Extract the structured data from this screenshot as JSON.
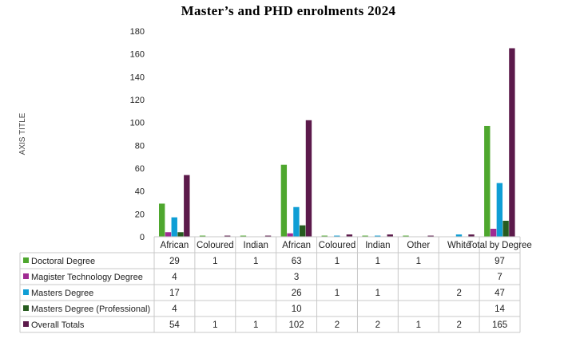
{
  "chart_data": {
    "type": "bar",
    "title": "Master’s and PHD enrolments 2024",
    "ylabel": "AXIS TITLE",
    "xlabel": "",
    "ylim": [
      0,
      180
    ],
    "yticks": [
      "0",
      "20",
      "40",
      "60",
      "80",
      "100",
      "120",
      "140",
      "160",
      "180"
    ],
    "categories": [
      "African",
      "Coloured",
      "Indian",
      "African",
      "Coloured",
      "Indian",
      "Other",
      "White",
      "Total by Degree"
    ],
    "grid": false,
    "legend": "data-table",
    "series": [
      {
        "name": "Doctoral Degree",
        "color": "#4EA72E",
        "values": [
          29,
          1,
          1,
          63,
          1,
          1,
          1,
          null,
          97
        ],
        "labels": [
          "29",
          "1",
          "1",
          "63",
          "1",
          "1",
          "1",
          "",
          "97"
        ]
      },
      {
        "name": "Magister Technology Degree",
        "color": "#A02B93",
        "values": [
          4,
          null,
          null,
          3,
          null,
          null,
          null,
          null,
          7
        ],
        "labels": [
          "4",
          "",
          "",
          "3",
          "",
          "",
          "",
          "",
          "7"
        ]
      },
      {
        "name": "Masters Degree",
        "color": "#0F9ED5",
        "values": [
          17,
          null,
          null,
          26,
          1,
          1,
          null,
          2,
          47
        ],
        "labels": [
          "17",
          "",
          "",
          "26",
          "1",
          "1",
          "",
          "2",
          "47"
        ]
      },
      {
        "name": "Masters Degree (Professional)",
        "color": "#265C1F",
        "values": [
          4,
          null,
          null,
          10,
          null,
          null,
          null,
          null,
          14
        ],
        "labels": [
          "4",
          "",
          "",
          "10",
          "",
          "",
          "",
          "",
          "14"
        ]
      },
      {
        "name": "Overall Totals",
        "color": "#5C1A4B",
        "values": [
          54,
          1,
          1,
          102,
          2,
          2,
          1,
          2,
          165
        ],
        "labels": [
          "54",
          "1",
          "1",
          "102",
          "2",
          "2",
          "1",
          "2",
          "165"
        ]
      }
    ]
  }
}
